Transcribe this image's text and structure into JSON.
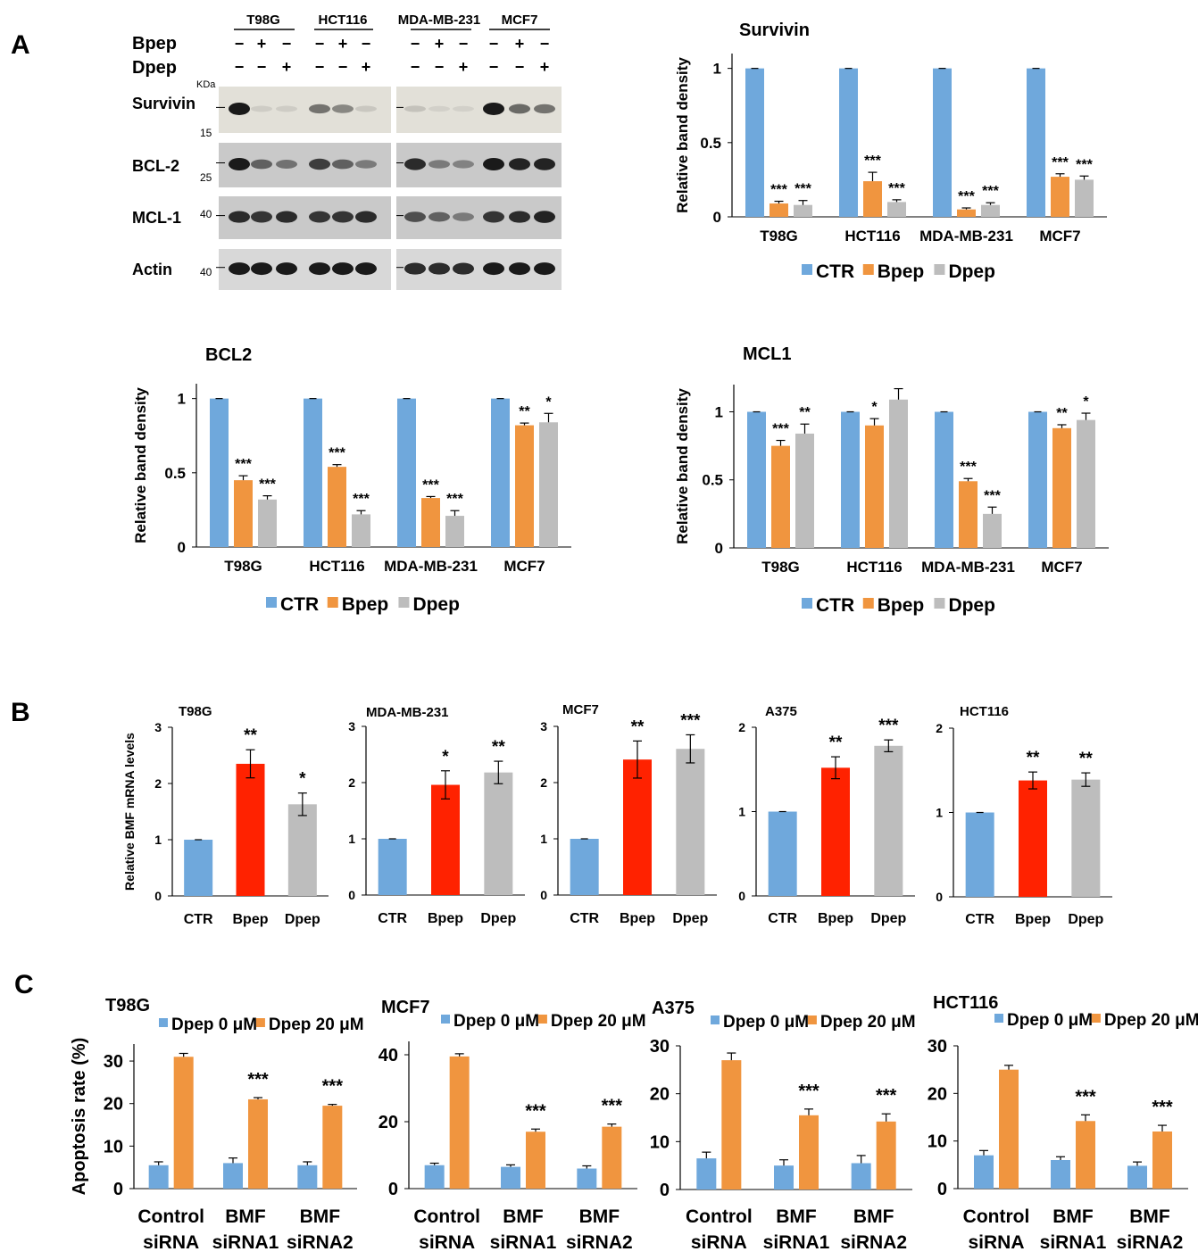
{
  "panel_labels": {
    "A": "A",
    "B": "B",
    "C": "C"
  },
  "colors": {
    "ctr": "#6fa8dc",
    "bpep": "#f0953f",
    "dpep": "#bdbdbd",
    "bpep_red": "#ff2200",
    "dpep0": "#6fa8dc",
    "dpep20": "#f0953f",
    "blot_light": "#e2e0d8",
    "blot_dark": "#c9c9c9",
    "band": "#1a1a1a"
  },
  "blot": {
    "cell_lines": [
      "T98G",
      "HCT116",
      "MDA-MB-231",
      "MCF7"
    ],
    "treatment_rows": [
      {
        "label": "Bpep",
        "marks": [
          "−",
          "+",
          "−",
          "−",
          "+",
          "−",
          "−",
          "+",
          "−",
          "−",
          "+",
          "−"
        ]
      },
      {
        "label": "Dpep",
        "marks": [
          "−",
          "−",
          "+",
          "−",
          "−",
          "+",
          "−",
          "−",
          "+",
          "−",
          "−",
          "+"
        ]
      }
    ],
    "kda_label": "KDa",
    "proteins": [
      {
        "name": "Survivin",
        "marker": "15",
        "bands": [
          1.0,
          0.1,
          0.1,
          0.55,
          0.45,
          0.12,
          0.15,
          0.05,
          0.05,
          1.0,
          0.6,
          0.55
        ]
      },
      {
        "name": "BCL-2",
        "marker": "25",
        "bands": [
          1.0,
          0.6,
          0.5,
          0.8,
          0.6,
          0.45,
          0.9,
          0.45,
          0.4,
          1.0,
          0.95,
          0.95
        ]
      },
      {
        "name": "MCL-1",
        "marker": "40",
        "bands": [
          0.9,
          0.85,
          0.9,
          0.85,
          0.85,
          0.9,
          0.7,
          0.6,
          0.45,
          0.85,
          0.9,
          0.95
        ]
      },
      {
        "name": "Actin",
        "marker": "40",
        "bands": [
          1.0,
          1.0,
          1.0,
          1.0,
          1.0,
          1.0,
          0.9,
          0.9,
          0.9,
          1.0,
          1.0,
          1.0
        ]
      }
    ]
  },
  "chart_data": [
    {
      "id": "A_survivin",
      "type": "bar",
      "title": "Survivin",
      "xlabel": "",
      "ylabel": "Relative band density",
      "ylim": [
        0,
        1.1
      ],
      "yticks": [
        0,
        0.5,
        1
      ],
      "ytick_labels": [
        "0",
        "0.5",
        "1"
      ],
      "categories": [
        "T98G",
        "HCT116",
        "MDA-MB-231",
        "MCF7"
      ],
      "series": [
        {
          "name": "CTR",
          "color_key": "ctr",
          "values": [
            1,
            1,
            1,
            1
          ],
          "errors": [
            0,
            0,
            0,
            0
          ],
          "stars": [
            "",
            "",
            "",
            ""
          ]
        },
        {
          "name": "Bpep",
          "color_key": "bpep",
          "values": [
            0.09,
            0.24,
            0.05,
            0.27
          ],
          "errors": [
            0.015,
            0.06,
            0.01,
            0.02
          ],
          "stars": [
            "***",
            "***",
            "***",
            "***"
          ]
        },
        {
          "name": "Dpep",
          "color_key": "dpep",
          "values": [
            0.08,
            0.1,
            0.08,
            0.25
          ],
          "errors": [
            0.03,
            0.015,
            0.015,
            0.025
          ],
          "stars": [
            "***",
            "***",
            "***",
            "***"
          ]
        }
      ],
      "legend": "bottom"
    },
    {
      "id": "A_bcl2",
      "type": "bar",
      "title": "BCL2",
      "xlabel": "",
      "ylabel": "Relative band density",
      "ylim": [
        0,
        1.1
      ],
      "yticks": [
        0,
        0.5,
        1
      ],
      "ytick_labels": [
        "0",
        "0.5",
        "1"
      ],
      "categories": [
        "T98G",
        "HCT116",
        "MDA-MB-231",
        "MCF7"
      ],
      "series": [
        {
          "name": "CTR",
          "color_key": "ctr",
          "values": [
            1,
            1,
            1,
            1
          ],
          "errors": [
            0,
            0,
            0,
            0
          ],
          "stars": [
            "",
            "",
            "",
            ""
          ]
        },
        {
          "name": "Bpep",
          "color_key": "bpep",
          "values": [
            0.45,
            0.54,
            0.33,
            0.82
          ],
          "errors": [
            0.03,
            0.015,
            0.01,
            0.015
          ],
          "stars": [
            "***",
            "***",
            "***",
            "**"
          ]
        },
        {
          "name": "Dpep",
          "color_key": "dpep",
          "values": [
            0.32,
            0.22,
            0.21,
            0.84
          ],
          "errors": [
            0.025,
            0.025,
            0.035,
            0.06
          ],
          "stars": [
            "***",
            "***",
            "***",
            "*"
          ]
        }
      ],
      "legend": "bottom"
    },
    {
      "id": "A_mcl1",
      "type": "bar",
      "title": "MCL1",
      "xlabel": "",
      "ylabel": "Relative band density",
      "ylim": [
        0,
        1.2
      ],
      "yticks": [
        0,
        0.5,
        1
      ],
      "ytick_labels": [
        "0",
        "0.5",
        "1"
      ],
      "categories": [
        "T98G",
        "HCT116",
        "MDA-MB-231",
        "MCF7"
      ],
      "series": [
        {
          "name": "CTR",
          "color_key": "ctr",
          "values": [
            1,
            1,
            1,
            1
          ],
          "errors": [
            0,
            0,
            0,
            0
          ],
          "stars": [
            "",
            "",
            "",
            ""
          ]
        },
        {
          "name": "Bpep",
          "color_key": "bpep",
          "values": [
            0.75,
            0.9,
            0.49,
            0.88
          ],
          "errors": [
            0.04,
            0.05,
            0.02,
            0.025
          ],
          "stars": [
            "***",
            "*",
            "***",
            "**"
          ]
        },
        {
          "name": "Dpep",
          "color_key": "dpep",
          "values": [
            0.84,
            1.09,
            0.25,
            0.94
          ],
          "errors": [
            0.07,
            0.08,
            0.05,
            0.05
          ],
          "stars": [
            "**",
            "",
            "***",
            "*"
          ]
        }
      ],
      "legend": "bottom"
    },
    {
      "id": "B_t98g",
      "type": "bar",
      "title": "T98G",
      "xlabel": "",
      "ylabel": "Relative BMF mRNA levels",
      "ylim": [
        0,
        3
      ],
      "yticks": [
        0,
        1,
        2,
        3
      ],
      "ytick_labels": [
        "0",
        "1",
        "2",
        "3"
      ],
      "categories": [
        "CTR",
        "Bpep",
        "Dpep"
      ],
      "bar_color_keys": [
        "ctr",
        "bpep_red",
        "dpep"
      ],
      "values": [
        1,
        2.35,
        1.63
      ],
      "errors": [
        0,
        0.25,
        0.2
      ],
      "stars": [
        "",
        "**",
        "*"
      ]
    },
    {
      "id": "B_mda",
      "type": "bar",
      "title": "MDA-MB-231",
      "xlabel": "",
      "ylabel": "",
      "ylim": [
        0,
        3
      ],
      "yticks": [
        0,
        1,
        2,
        3
      ],
      "ytick_labels": [
        "0",
        "1",
        "2",
        "3"
      ],
      "categories": [
        "CTR",
        "Bpep",
        "Dpep"
      ],
      "bar_color_keys": [
        "ctr",
        "bpep_red",
        "dpep"
      ],
      "values": [
        1,
        1.96,
        2.18
      ],
      "errors": [
        0,
        0.25,
        0.2
      ],
      "stars": [
        "",
        "*",
        "**"
      ]
    },
    {
      "id": "B_mcf7",
      "type": "bar",
      "title": "MCF7",
      "xlabel": "",
      "ylabel": "",
      "ylim": [
        0,
        3
      ],
      "yticks": [
        0,
        1,
        2,
        3
      ],
      "ytick_labels": [
        "0",
        "1",
        "2",
        "3"
      ],
      "categories": [
        "CTR",
        "Bpep",
        "Dpep"
      ],
      "bar_color_keys": [
        "ctr",
        "bpep_red",
        "dpep"
      ],
      "values": [
        1,
        2.41,
        2.6
      ],
      "errors": [
        0,
        0.33,
        0.25
      ],
      "stars": [
        "",
        "**",
        "***"
      ]
    },
    {
      "id": "B_a375",
      "type": "bar",
      "title": "A375",
      "xlabel": "",
      "ylabel": "",
      "ylim": [
        0,
        2
      ],
      "yticks": [
        0,
        1,
        2
      ],
      "ytick_labels": [
        "0",
        "1",
        "2"
      ],
      "categories": [
        "CTR",
        "Bpep",
        "Dpep"
      ],
      "bar_color_keys": [
        "ctr",
        "bpep_red",
        "dpep"
      ],
      "values": [
        1,
        1.52,
        1.78
      ],
      "errors": [
        0,
        0.13,
        0.07
      ],
      "stars": [
        "",
        "**",
        "***"
      ]
    },
    {
      "id": "B_hct116",
      "type": "bar",
      "title": "HCT116",
      "xlabel": "",
      "ylabel": "",
      "ylim": [
        0,
        2
      ],
      "yticks": [
        0,
        1,
        2
      ],
      "ytick_labels": [
        "0",
        "1",
        "2"
      ],
      "categories": [
        "CTR",
        "Bpep",
        "Dpep"
      ],
      "bar_color_keys": [
        "ctr",
        "bpep_red",
        "dpep"
      ],
      "values": [
        1,
        1.38,
        1.39
      ],
      "errors": [
        0,
        0.1,
        0.08
      ],
      "stars": [
        "",
        "**",
        "**"
      ]
    },
    {
      "id": "C_t98g",
      "type": "bar",
      "title": "T98G",
      "xlabel": "",
      "ylabel": "Apoptosis rate (%)",
      "ylim": [
        0,
        34
      ],
      "yticks": [
        0,
        10,
        20,
        30
      ],
      "ytick_labels": [
        "0",
        "10",
        "20",
        "30"
      ],
      "categories": [
        "Control siRNA",
        "BMF siRNA1",
        "BMF siRNA2"
      ],
      "category_lines": [
        [
          "Control",
          "siRNA"
        ],
        [
          "BMF",
          "siRNA1"
        ],
        [
          "BMF",
          "siRNA2"
        ]
      ],
      "series": [
        {
          "name": "Dpep 0 μM",
          "color_key": "dpep0",
          "values": [
            5.5,
            6.0,
            5.5
          ],
          "errors": [
            0.8,
            1.2,
            0.8
          ],
          "stars": [
            "",
            "",
            ""
          ]
        },
        {
          "name": "Dpep 20 μM",
          "color_key": "dpep20",
          "values": [
            31.0,
            21.0,
            19.5
          ],
          "errors": [
            0.8,
            0.4,
            0.3
          ],
          "stars": [
            "",
            "***",
            "***"
          ]
        }
      ],
      "legend": "top"
    },
    {
      "id": "C_mcf7",
      "type": "bar",
      "title": "MCF7",
      "xlabel": "",
      "ylabel": "",
      "ylim": [
        0,
        44
      ],
      "yticks": [
        0,
        20,
        40
      ],
      "ytick_labels": [
        "0",
        "20",
        "40"
      ],
      "categories": [
        "Control siRNA",
        "BMF siRNA1",
        "BMF siRNA2"
      ],
      "category_lines": [
        [
          "Control",
          "siRNA"
        ],
        [
          "BMF",
          "siRNA1"
        ],
        [
          "BMF",
          "siRNA2"
        ]
      ],
      "series": [
        {
          "name": "Dpep 0 μM",
          "color_key": "dpep0",
          "values": [
            7.0,
            6.5,
            6.0
          ],
          "errors": [
            0.6,
            0.6,
            0.8
          ],
          "stars": [
            "",
            "",
            ""
          ]
        },
        {
          "name": "Dpep 20 μM",
          "color_key": "dpep20",
          "values": [
            39.5,
            17.0,
            18.5
          ],
          "errors": [
            0.8,
            0.8,
            0.8
          ],
          "stars": [
            "",
            "***",
            "***"
          ]
        }
      ],
      "legend": "top"
    },
    {
      "id": "C_a375",
      "type": "bar",
      "title": "A375",
      "xlabel": "",
      "ylabel": "",
      "ylim": [
        0,
        30
      ],
      "yticks": [
        0,
        10,
        20,
        30
      ],
      "ytick_labels": [
        "0",
        "10",
        "20",
        "30"
      ],
      "categories": [
        "Control siRNA",
        "BMF siRNA1",
        "BMF siRNA2"
      ],
      "category_lines": [
        [
          "Control",
          "siRNA"
        ],
        [
          "BMF",
          "siRNA1"
        ],
        [
          "BMF",
          "siRNA2"
        ]
      ],
      "series": [
        {
          "name": "Dpep 0 μM",
          "color_key": "dpep0",
          "values": [
            6.5,
            5.0,
            5.5
          ],
          "errors": [
            1.3,
            1.2,
            1.6
          ],
          "stars": [
            "",
            "",
            ""
          ]
        },
        {
          "name": "Dpep 20 μM",
          "color_key": "dpep20",
          "values": [
            27.0,
            15.5,
            14.2
          ],
          "errors": [
            1.5,
            1.3,
            1.6
          ],
          "stars": [
            "",
            "***",
            "***"
          ]
        }
      ],
      "legend": "top"
    },
    {
      "id": "C_hct116",
      "type": "bar",
      "title": "HCT116",
      "xlabel": "",
      "ylabel": "",
      "ylim": [
        0,
        30
      ],
      "yticks": [
        0,
        10,
        20,
        30
      ],
      "ytick_labels": [
        "0",
        "10",
        "20",
        "30"
      ],
      "categories": [
        "Control siRNA",
        "BMF siRNA1",
        "BMF siRNA2"
      ],
      "category_lines": [
        [
          "Control",
          "siRNA"
        ],
        [
          "BMF",
          "siRNA1"
        ],
        [
          "BMF",
          "siRNA2"
        ]
      ],
      "series": [
        {
          "name": "Dpep 0 μM",
          "color_key": "dpep0",
          "values": [
            7.0,
            6.0,
            4.8
          ],
          "errors": [
            1.0,
            0.7,
            0.8
          ],
          "stars": [
            "",
            "",
            ""
          ]
        },
        {
          "name": "Dpep 20 μM",
          "color_key": "dpep20",
          "values": [
            25.0,
            14.2,
            12.0
          ],
          "errors": [
            0.9,
            1.3,
            1.3
          ],
          "stars": [
            "",
            "***",
            "***"
          ]
        }
      ],
      "legend": "top"
    }
  ]
}
